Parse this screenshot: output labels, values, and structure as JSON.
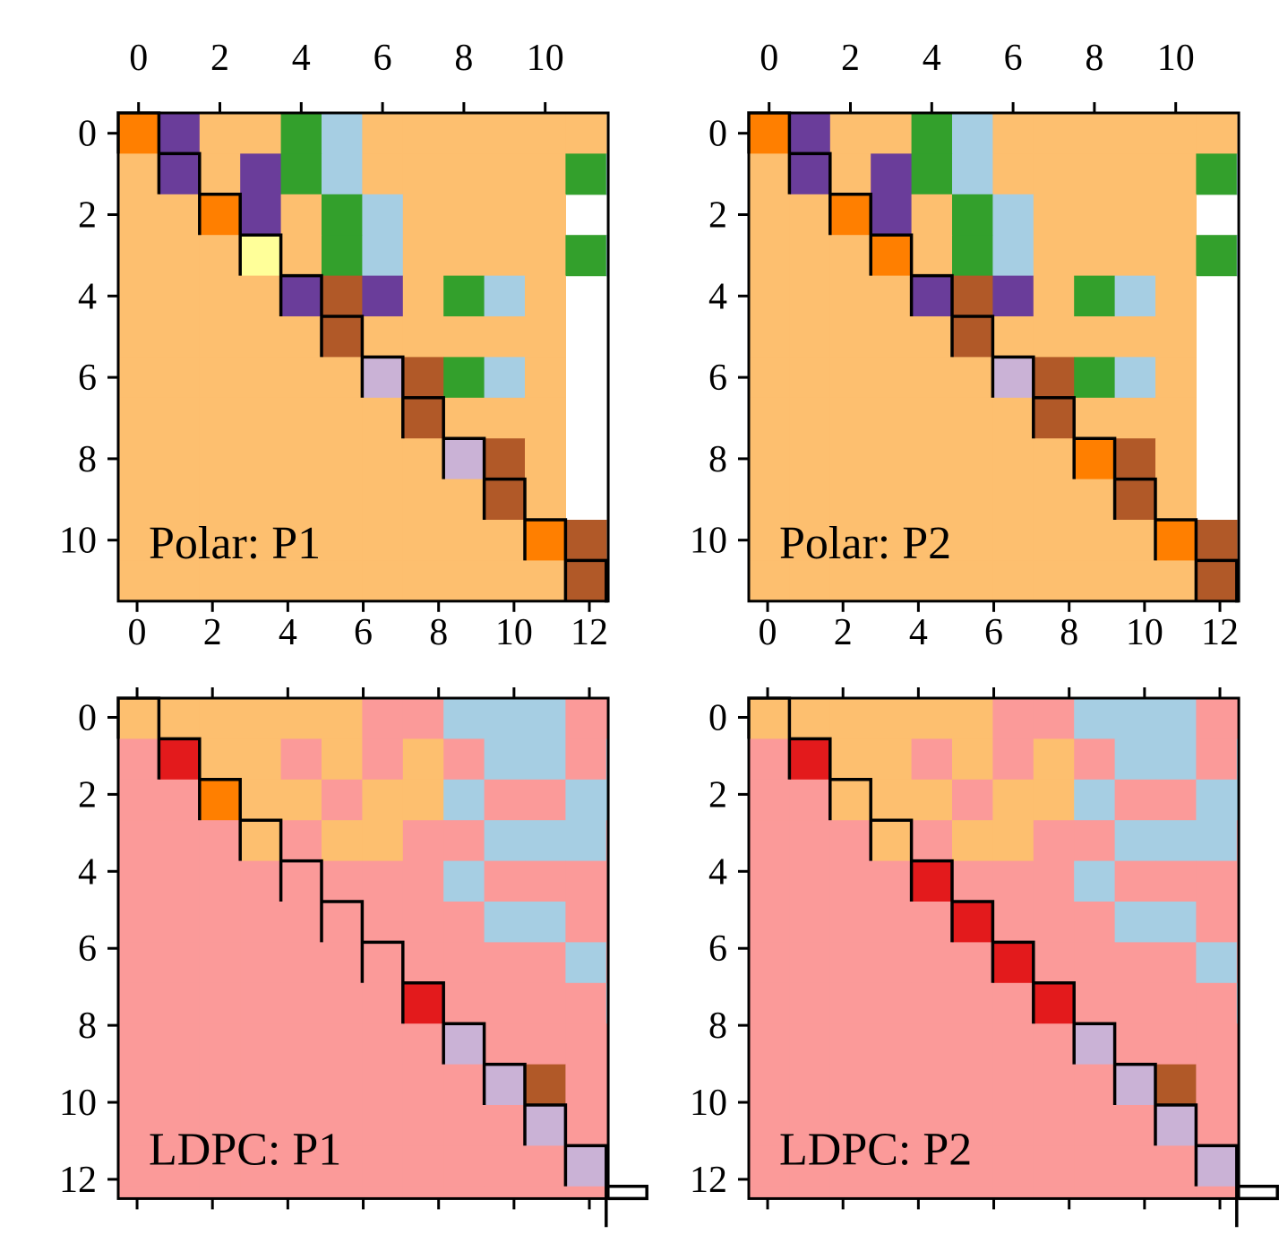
{
  "palette": {
    "A": "#fdbf6f",
    "B": "#ff7f00",
    "C": "#6a3d9a",
    "D": "#33a02c",
    "E": "#a6cee3",
    "F": "#ffff99",
    "G": "#b15928",
    "H": "#cab2d6",
    "I": "#fb9a99",
    "J": "#e31a1c"
  },
  "chart_data": [
    {
      "type": "heatmap",
      "label": "Polar: P1",
      "xticks": [
        0,
        2,
        4,
        6,
        8,
        10
      ],
      "yticks": [
        0,
        2,
        4,
        6,
        8,
        10
      ],
      "xticks_bottom": [
        0,
        2,
        4,
        6,
        8,
        10,
        12
      ],
      "rows": [
        "BCAADEAAAAAA",
        "ACACDEAAAAADE",
        "AABCADEAAAA",
        "AAAFADEAAAADE",
        "AAAACGCADEA",
        "AAAAAGAAAAA",
        "AAAAAAHGDEA",
        "AAAAAAAGAAA",
        "AAAAAAAAHGA",
        "AAAAAAAAAGA",
        "AAAAAAAAAABG",
        "AAAAAAAAAAAG"
      ],
      "diagonal": [
        [
          0,
          0
        ],
        [
          1,
          1
        ],
        [
          2,
          2
        ],
        [
          3,
          3
        ],
        [
          4,
          4
        ],
        [
          5,
          5
        ],
        [
          6,
          6
        ],
        [
          7,
          7
        ],
        [
          8,
          8
        ],
        [
          9,
          9
        ],
        [
          10,
          10
        ],
        [
          11,
          11
        ]
      ]
    },
    {
      "type": "heatmap",
      "label": "Polar: P2",
      "xticks": [
        0,
        2,
        4,
        6,
        8,
        10
      ],
      "yticks": [
        0,
        2,
        4,
        6,
        8,
        10
      ],
      "xticks_bottom": [
        0,
        2,
        4,
        6,
        8,
        10,
        12
      ],
      "rows": [
        "BCAADEAAAAAA",
        "ACACDEAAAAADE",
        "AABCADEAAAA",
        "AAABADEAAAADE",
        "AAAACGCADEA",
        "AAAAAGAAAAA",
        "AAAAAAHGDEA",
        "AAAAAAAGAAA",
        "AAAAAAAABGA",
        "AAAAAAAAAGA",
        "AAAAAAAAAABG",
        "AAAAAAAAAAAG"
      ],
      "diagonal": [
        [
          0,
          0
        ],
        [
          1,
          1
        ],
        [
          2,
          2
        ],
        [
          3,
          3
        ],
        [
          4,
          4
        ],
        [
          5,
          5
        ],
        [
          6,
          6
        ],
        [
          7,
          7
        ],
        [
          8,
          8
        ],
        [
          9,
          9
        ],
        [
          10,
          10
        ],
        [
          11,
          11
        ]
      ]
    },
    {
      "type": "heatmap",
      "label": "LDPC: P1",
      "yticks": [
        0,
        2,
        4,
        6,
        8,
        10,
        12
      ],
      "rows": [
        "AAAAAAIIEEEII",
        "IJAAIAIAIEEIE",
        "IIBAAIAAEIIEE",
        "IIIAIAAIIEEEI",
        "IIIIIIIIEIIII",
        "IIIIIIIIIEEII",
        "IIIIIIIIIIIEI",
        "IIIIIIIJIIIIE",
        "IIIIIIIIHIIII",
        "IIIIIIIIIHGII",
        "IIIIIIIIIIHII",
        "IIIIIIIIIIIHI",
        "IIIIIIIIIIIIH"
      ],
      "diagonal": [
        [
          0,
          0
        ],
        [
          1,
          1
        ],
        [
          2,
          2
        ],
        [
          3,
          3
        ],
        [
          4,
          4
        ],
        [
          5,
          5
        ],
        [
          6,
          6
        ],
        [
          7,
          7
        ],
        [
          8,
          8
        ],
        [
          9,
          9
        ],
        [
          10,
          10
        ],
        [
          11,
          11
        ],
        [
          12,
          12
        ]
      ]
    },
    {
      "type": "heatmap",
      "label": "LDPC: P2",
      "yticks": [
        0,
        2,
        4,
        6,
        8,
        10,
        12
      ],
      "rows": [
        "AAAAAAIIEEEII",
        "IJAAIAIAIEEIE",
        "IIAAAIAAEIIEE",
        "IIIAIAAIIEEEI",
        "IIIIJIIIEIIII",
        "IIIIIJIIIEEII",
        "IIIIIIJIIIIEI",
        "IIIIIIIJIIIIE",
        "IIIIIIIIHIIII",
        "IIIIIIIIIHGII",
        "IIIIIIIIIIHII",
        "IIIIIIIIIIIHI",
        "IIIIIIIIIIIIH"
      ],
      "diagonal": [
        [
          0,
          0
        ],
        [
          1,
          1
        ],
        [
          2,
          2
        ],
        [
          3,
          3
        ],
        [
          4,
          4
        ],
        [
          5,
          5
        ],
        [
          6,
          6
        ],
        [
          7,
          7
        ],
        [
          8,
          8
        ],
        [
          9,
          9
        ],
        [
          10,
          10
        ],
        [
          11,
          11
        ],
        [
          12,
          12
        ]
      ]
    }
  ]
}
